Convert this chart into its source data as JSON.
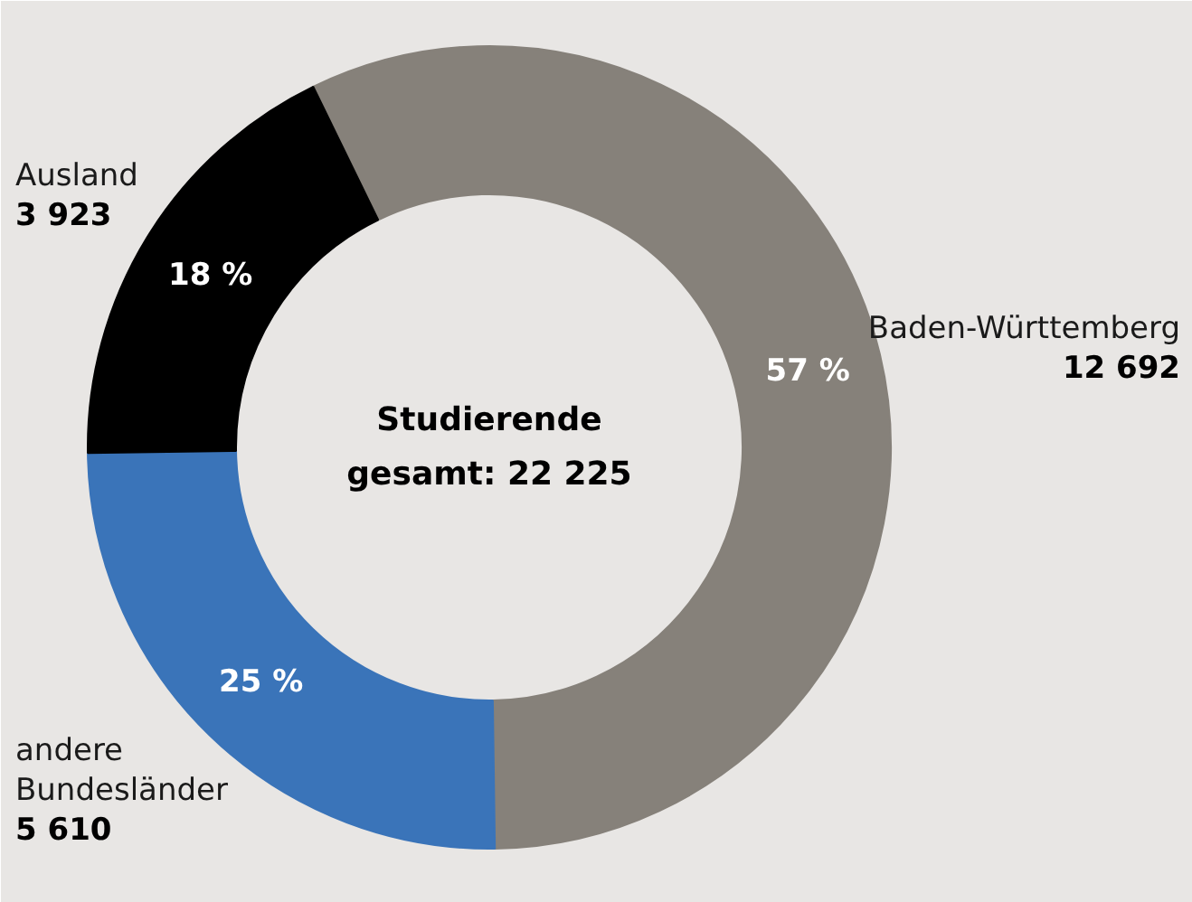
{
  "chart_data": {
    "type": "donut",
    "title": "Studierende\ngesamt: 22 225",
    "categories": [
      "Baden-Württemberg",
      "andere Bundesländer",
      "Ausland"
    ],
    "values": [
      57,
      25,
      18
    ],
    "colors": [
      "#86817a",
      "#3a74b9",
      "#000000"
    ],
    "value_labels": [
      "57 %",
      "25 %",
      "18 %"
    ],
    "annotations": [
      {
        "text": "12 692",
        "x": "Baden-Württemberg"
      },
      {
        "text": "5 610",
        "x": "andere Bundesländer"
      },
      {
        "text": "3 923",
        "x": "Ausland"
      }
    ]
  }
}
